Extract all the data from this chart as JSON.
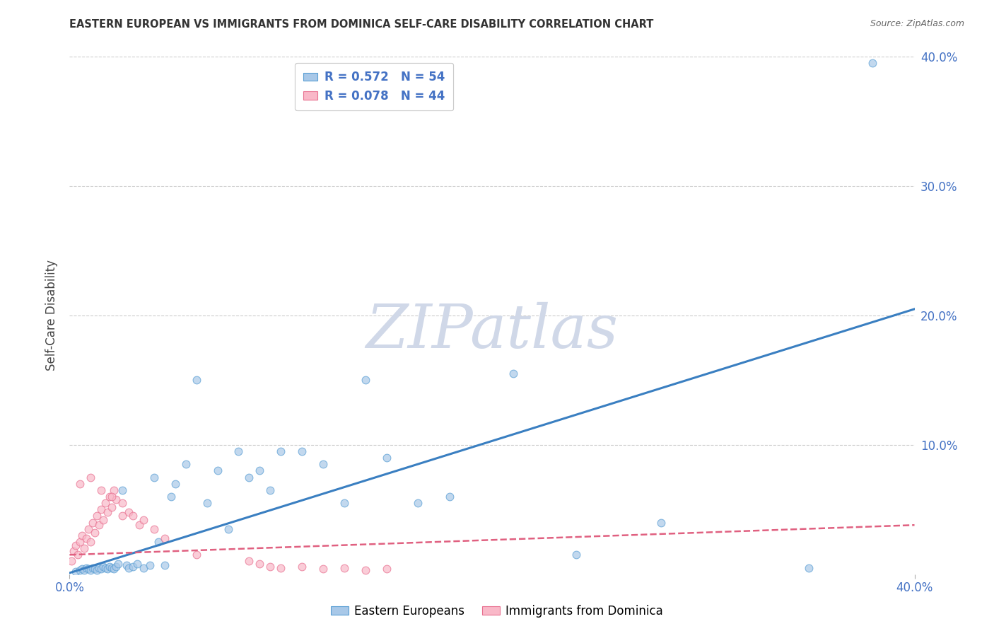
{
  "title": "EASTERN EUROPEAN VS IMMIGRANTS FROM DOMINICA SELF-CARE DISABILITY CORRELATION CHART",
  "source": "Source: ZipAtlas.com",
  "ylabel": "Self-Care Disability",
  "xlim": [
    0.0,
    0.4
  ],
  "ylim": [
    0.0,
    0.4
  ],
  "xticks": [
    0.0,
    0.4
  ],
  "xticklabels": [
    "0.0%",
    "40.0%"
  ],
  "yticks": [
    0.0,
    0.1,
    0.2,
    0.3,
    0.4
  ],
  "ytick_right_labels": [
    "",
    "10.0%",
    "20.0%",
    "30.0%",
    "40.0%"
  ],
  "background_color": "#ffffff",
  "grid_color": "#cccccc",
  "grid_yticks": [
    0.1,
    0.2,
    0.3,
    0.4
  ],
  "blue_fill_color": "#a8c8e8",
  "blue_edge_color": "#5a9fd4",
  "blue_line_color": "#3a7fc1",
  "pink_fill_color": "#f9b8c8",
  "pink_edge_color": "#e87090",
  "pink_line_color": "#e06080",
  "tick_label_color": "#4472c4",
  "legend_r1": "R = 0.572",
  "legend_n1": "N = 54",
  "legend_r2": "R = 0.078",
  "legend_n2": "N = 44",
  "watermark_text": "ZIPatlas",
  "watermark_color": "#d0d8e8",
  "blue_scatter_x": [
    0.003,
    0.005,
    0.006,
    0.007,
    0.008,
    0.009,
    0.01,
    0.011,
    0.012,
    0.013,
    0.014,
    0.015,
    0.016,
    0.017,
    0.018,
    0.019,
    0.02,
    0.021,
    0.022,
    0.023,
    0.025,
    0.027,
    0.028,
    0.03,
    0.032,
    0.035,
    0.038,
    0.04,
    0.042,
    0.045,
    0.048,
    0.05,
    0.055,
    0.06,
    0.065,
    0.07,
    0.075,
    0.08,
    0.085,
    0.09,
    0.095,
    0.1,
    0.11,
    0.12,
    0.13,
    0.14,
    0.15,
    0.165,
    0.18,
    0.21,
    0.24,
    0.28,
    0.35,
    0.38
  ],
  "blue_scatter_y": [
    0.002,
    0.003,
    0.004,
    0.003,
    0.005,
    0.004,
    0.003,
    0.005,
    0.004,
    0.003,
    0.005,
    0.004,
    0.006,
    0.005,
    0.004,
    0.006,
    0.005,
    0.004,
    0.006,
    0.008,
    0.065,
    0.007,
    0.005,
    0.006,
    0.008,
    0.005,
    0.007,
    0.075,
    0.025,
    0.007,
    0.06,
    0.07,
    0.085,
    0.15,
    0.055,
    0.08,
    0.035,
    0.095,
    0.075,
    0.08,
    0.065,
    0.095,
    0.095,
    0.085,
    0.055,
    0.15,
    0.09,
    0.055,
    0.06,
    0.155,
    0.015,
    0.04,
    0.005,
    0.395
  ],
  "pink_scatter_x": [
    0.001,
    0.002,
    0.003,
    0.004,
    0.005,
    0.006,
    0.007,
    0.008,
    0.009,
    0.01,
    0.011,
    0.012,
    0.013,
    0.014,
    0.015,
    0.016,
    0.017,
    0.018,
    0.019,
    0.02,
    0.021,
    0.022,
    0.025,
    0.028,
    0.03,
    0.033,
    0.035,
    0.04,
    0.045,
    0.06,
    0.085,
    0.09,
    0.095,
    0.1,
    0.11,
    0.12,
    0.13,
    0.14,
    0.15,
    0.005,
    0.01,
    0.015,
    0.02,
    0.025
  ],
  "pink_scatter_y": [
    0.01,
    0.018,
    0.022,
    0.015,
    0.025,
    0.03,
    0.02,
    0.028,
    0.035,
    0.025,
    0.04,
    0.032,
    0.045,
    0.038,
    0.05,
    0.042,
    0.055,
    0.048,
    0.06,
    0.052,
    0.065,
    0.058,
    0.055,
    0.048,
    0.045,
    0.038,
    0.042,
    0.035,
    0.028,
    0.015,
    0.01,
    0.008,
    0.006,
    0.005,
    0.006,
    0.004,
    0.005,
    0.003,
    0.004,
    0.07,
    0.075,
    0.065,
    0.06,
    0.045
  ],
  "blue_line_x": [
    0.0,
    0.4
  ],
  "blue_line_y": [
    0.001,
    0.205
  ],
  "pink_line_x": [
    0.0,
    0.4
  ],
  "pink_line_y": [
    0.015,
    0.038
  ]
}
